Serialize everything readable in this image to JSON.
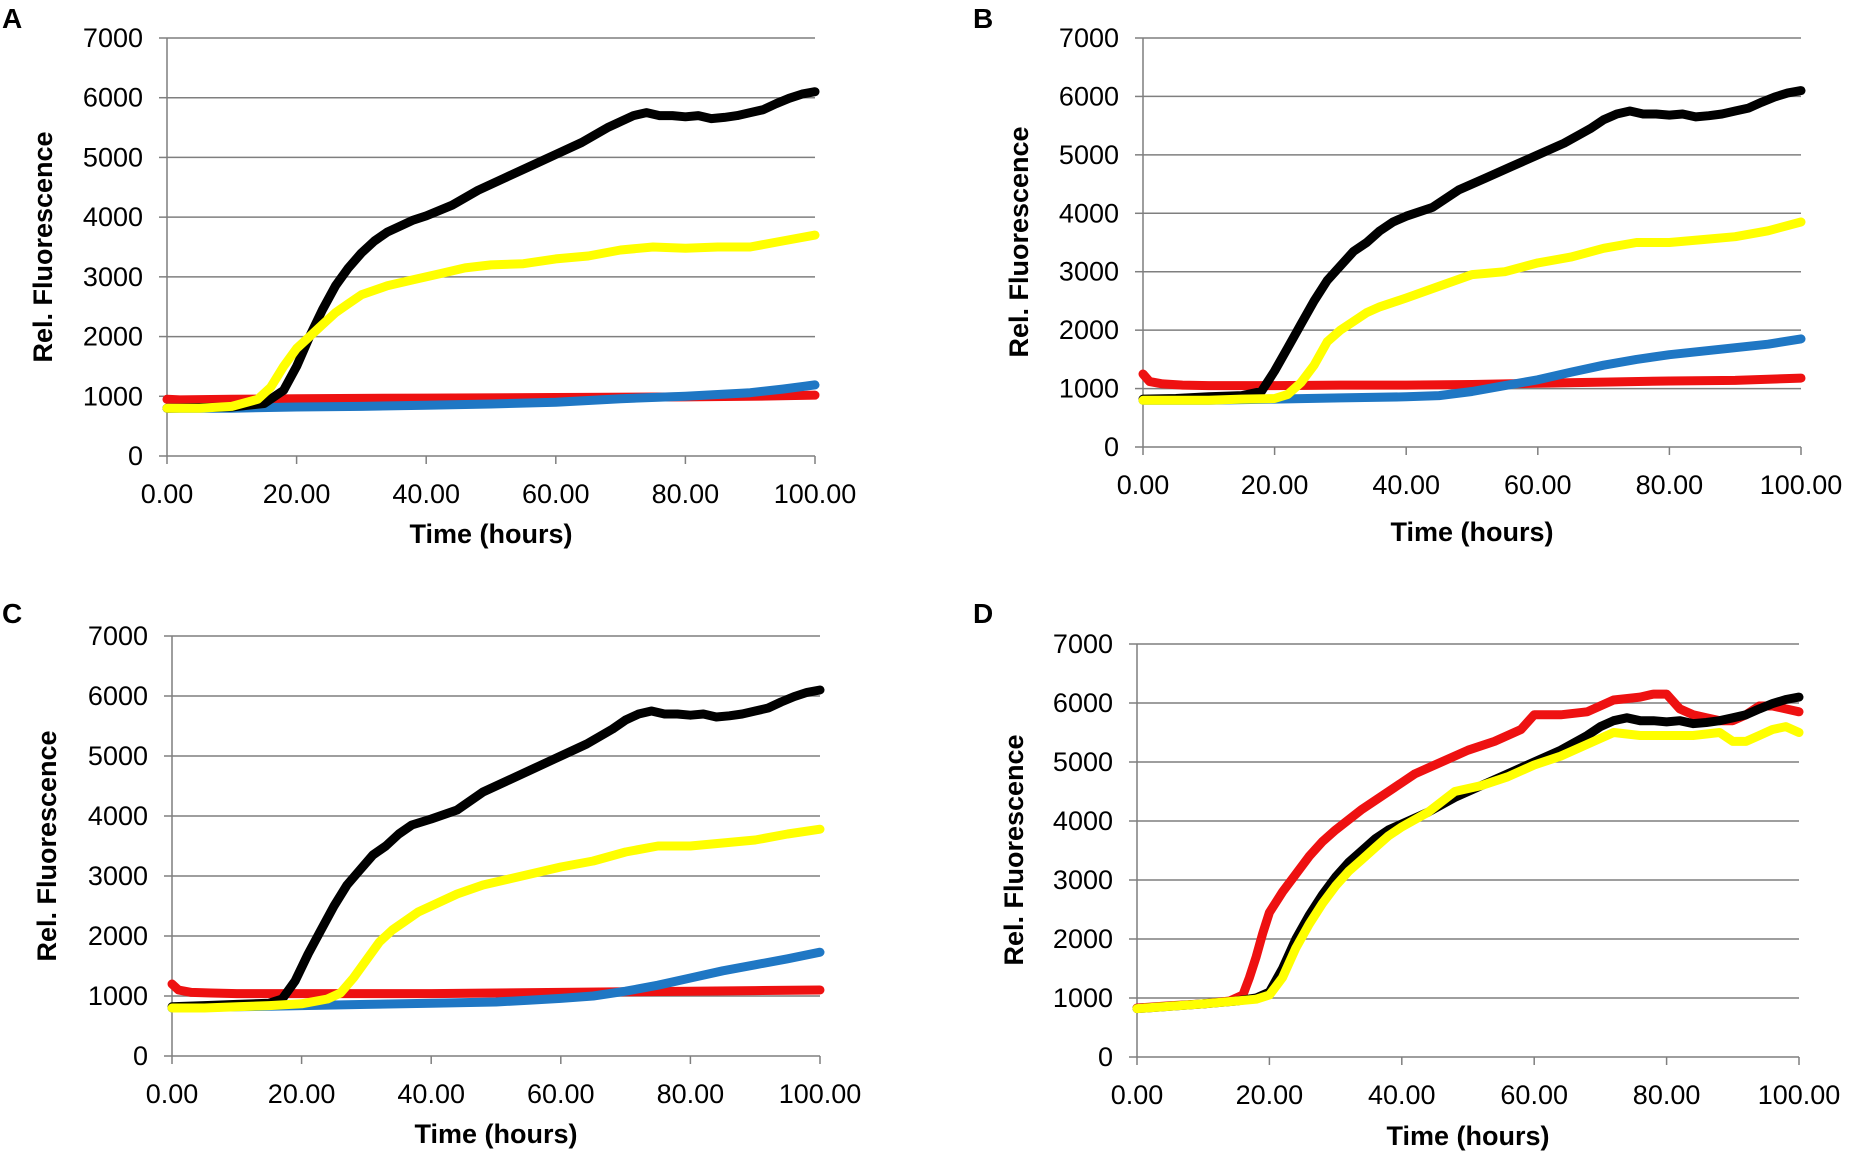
{
  "colors": {
    "black": "#000000",
    "yellow": "#ffff00",
    "blue": "#1f77c4",
    "red": "#ee1111",
    "grid": "#7f7f7f"
  },
  "chart_data": [
    {
      "panel": "A",
      "type": "line",
      "title": "",
      "xlabel": "Time (hours)",
      "ylabel": "Rel. Fluorescence",
      "xlim": [
        0,
        100
      ],
      "ylim": [
        0,
        7000
      ],
      "grid": true,
      "x_ticks": [
        "0.00",
        "20.00",
        "40.00",
        "60.00",
        "80.00",
        "100.00"
      ],
      "y_ticks": [
        "0",
        "1000",
        "2000",
        "3000",
        "4000",
        "5000",
        "6000",
        "7000"
      ],
      "series": [
        {
          "name": "red",
          "color": "red",
          "x": [
            0,
            2,
            10,
            20,
            40,
            60,
            80,
            90,
            100
          ],
          "y": [
            950,
            940,
            950,
            960,
            970,
            980,
            990,
            1000,
            1020
          ]
        },
        {
          "name": "blue",
          "color": "blue",
          "x": [
            0,
            10,
            20,
            30,
            40,
            50,
            60,
            70,
            80,
            90,
            95,
            100
          ],
          "y": [
            800,
            800,
            820,
            830,
            850,
            870,
            900,
            960,
            1000,
            1060,
            1120,
            1190
          ]
        },
        {
          "name": "black",
          "color": "black",
          "x": [
            0,
            5,
            10,
            15,
            18,
            20,
            22,
            24,
            26,
            28,
            30,
            32,
            34,
            36,
            38,
            40,
            44,
            48,
            52,
            56,
            60,
            64,
            68,
            70,
            72,
            74,
            76,
            78,
            80,
            82,
            84,
            86,
            88,
            90,
            92,
            94,
            96,
            98,
            100
          ],
          "y": [
            800,
            810,
            820,
            880,
            1100,
            1500,
            2000,
            2450,
            2850,
            3150,
            3400,
            3600,
            3750,
            3850,
            3950,
            4020,
            4200,
            4450,
            4650,
            4850,
            5050,
            5250,
            5500,
            5600,
            5700,
            5750,
            5700,
            5700,
            5680,
            5700,
            5650,
            5670,
            5700,
            5750,
            5800,
            5900,
            5990,
            6060,
            6100
          ]
        },
        {
          "name": "yellow",
          "color": "yellow",
          "x": [
            0,
            5,
            10,
            14,
            16,
            18,
            20,
            22,
            24,
            26,
            28,
            30,
            34,
            38,
            42,
            46,
            50,
            55,
            60,
            65,
            70,
            75,
            80,
            85,
            90,
            95,
            100
          ],
          "y": [
            800,
            800,
            830,
            950,
            1150,
            1500,
            1800,
            2000,
            2200,
            2400,
            2550,
            2700,
            2850,
            2950,
            3050,
            3150,
            3200,
            3220,
            3300,
            3350,
            3450,
            3500,
            3480,
            3500,
            3500,
            3600,
            3700
          ]
        }
      ]
    },
    {
      "panel": "B",
      "type": "line",
      "title": "",
      "xlabel": "Time (hours)",
      "ylabel": "Rel. Fluorescence",
      "xlim": [
        0,
        100
      ],
      "ylim": [
        0,
        7000
      ],
      "grid": true,
      "x_ticks": [
        "0.00",
        "20.00",
        "40.00",
        "60.00",
        "80.00",
        "100.00"
      ],
      "y_ticks": [
        "0",
        "1000",
        "2000",
        "3000",
        "4000",
        "5000",
        "6000",
        "7000"
      ],
      "series": [
        {
          "name": "red",
          "color": "red",
          "x": [
            0,
            1,
            3,
            6,
            10,
            20,
            30,
            40,
            50,
            60,
            70,
            80,
            90,
            100
          ],
          "y": [
            1250,
            1120,
            1080,
            1060,
            1050,
            1050,
            1060,
            1060,
            1070,
            1090,
            1110,
            1130,
            1140,
            1180
          ]
        },
        {
          "name": "blue",
          "color": "blue",
          "x": [
            0,
            10,
            20,
            30,
            40,
            45,
            50,
            55,
            60,
            65,
            70,
            75,
            80,
            85,
            90,
            95,
            100
          ],
          "y": [
            800,
            800,
            820,
            840,
            860,
            880,
            950,
            1050,
            1150,
            1280,
            1400,
            1500,
            1580,
            1640,
            1700,
            1760,
            1850
          ]
        },
        {
          "name": "black",
          "color": "black",
          "x": [
            0,
            5,
            10,
            15,
            18,
            20,
            22,
            24,
            26,
            28,
            30,
            32,
            34,
            36,
            38,
            40,
            44,
            48,
            52,
            56,
            60,
            64,
            68,
            70,
            72,
            74,
            76,
            78,
            80,
            82,
            84,
            86,
            88,
            90,
            92,
            94,
            96,
            98,
            100
          ],
          "y": [
            820,
            830,
            860,
            880,
            950,
            1300,
            1700,
            2100,
            2500,
            2850,
            3100,
            3350,
            3500,
            3700,
            3850,
            3950,
            4100,
            4400,
            4600,
            4800,
            5000,
            5200,
            5450,
            5600,
            5700,
            5750,
            5700,
            5700,
            5680,
            5700,
            5650,
            5670,
            5700,
            5750,
            5800,
            5900,
            5990,
            6060,
            6100
          ]
        },
        {
          "name": "yellow",
          "color": "yellow",
          "x": [
            0,
            5,
            10,
            15,
            20,
            22,
            24,
            26,
            28,
            30,
            32,
            34,
            36,
            40,
            45,
            50,
            55,
            60,
            65,
            70,
            75,
            80,
            85,
            90,
            95,
            100
          ],
          "y": [
            800,
            800,
            800,
            820,
            830,
            900,
            1100,
            1400,
            1800,
            2000,
            2150,
            2300,
            2400,
            2550,
            2750,
            2950,
            3000,
            3150,
            3250,
            3400,
            3500,
            3500,
            3550,
            3600,
            3700,
            3850
          ]
        }
      ]
    },
    {
      "panel": "C",
      "type": "line",
      "title": "",
      "xlabel": "Time (hours)",
      "ylabel": "Rel. Fluorescence",
      "xlim": [
        0,
        100
      ],
      "ylim": [
        0,
        7000
      ],
      "grid": true,
      "x_ticks": [
        "0.00",
        "20.00",
        "40.00",
        "60.00",
        "80.00",
        "100.00"
      ],
      "y_ticks": [
        "0",
        "1000",
        "2000",
        "3000",
        "4000",
        "5000",
        "6000",
        "7000"
      ],
      "series": [
        {
          "name": "red",
          "color": "red",
          "x": [
            0,
            1,
            3,
            6,
            10,
            20,
            30,
            40,
            50,
            60,
            70,
            80,
            90,
            100
          ],
          "y": [
            1200,
            1100,
            1060,
            1050,
            1040,
            1040,
            1040,
            1040,
            1050,
            1060,
            1070,
            1080,
            1090,
            1100
          ]
        },
        {
          "name": "blue",
          "color": "blue",
          "x": [
            0,
            10,
            20,
            30,
            40,
            50,
            55,
            60,
            65,
            70,
            75,
            80,
            85,
            90,
            95,
            100
          ],
          "y": [
            800,
            820,
            840,
            860,
            880,
            900,
            930,
            960,
            1000,
            1080,
            1180,
            1300,
            1420,
            1520,
            1620,
            1730
          ]
        },
        {
          "name": "black",
          "color": "black",
          "x": [
            0,
            5,
            10,
            15,
            17,
            19,
            21,
            23,
            25,
            27,
            29,
            31,
            33,
            35,
            37,
            40,
            44,
            48,
            52,
            56,
            60,
            64,
            68,
            70,
            72,
            74,
            76,
            78,
            80,
            82,
            84,
            86,
            88,
            90,
            92,
            94,
            96,
            98,
            100
          ],
          "y": [
            820,
            840,
            860,
            880,
            950,
            1250,
            1700,
            2100,
            2500,
            2850,
            3100,
            3350,
            3500,
            3700,
            3850,
            3950,
            4100,
            4400,
            4600,
            4800,
            5000,
            5200,
            5450,
            5600,
            5700,
            5750,
            5700,
            5700,
            5680,
            5700,
            5650,
            5670,
            5700,
            5750,
            5800,
            5900,
            5990,
            6060,
            6100
          ]
        },
        {
          "name": "yellow",
          "color": "yellow",
          "x": [
            0,
            5,
            10,
            15,
            20,
            24,
            26,
            28,
            30,
            32,
            34,
            36,
            38,
            40,
            44,
            48,
            52,
            56,
            60,
            65,
            70,
            75,
            80,
            85,
            90,
            95,
            100
          ],
          "y": [
            800,
            800,
            820,
            840,
            870,
            950,
            1050,
            1300,
            1600,
            1900,
            2100,
            2250,
            2400,
            2500,
            2700,
            2850,
            2950,
            3050,
            3150,
            3250,
            3400,
            3500,
            3500,
            3550,
            3600,
            3700,
            3780
          ]
        }
      ]
    },
    {
      "panel": "D",
      "type": "line",
      "title": "",
      "xlabel": "Time (hours)",
      "ylabel": "Rel. Fluorescence",
      "xlim": [
        0,
        100
      ],
      "ylim": [
        0,
        7000
      ],
      "grid": true,
      "x_ticks": [
        "0.00",
        "20.00",
        "40.00",
        "60.00",
        "80.00",
        "100.00"
      ],
      "y_ticks": [
        "0",
        "1000",
        "2000",
        "3000",
        "4000",
        "5000",
        "6000",
        "7000"
      ],
      "series": [
        {
          "name": "red",
          "color": "red",
          "x": [
            0,
            5,
            10,
            14,
            16,
            17,
            18,
            19,
            20,
            22,
            24,
            26,
            28,
            30,
            34,
            38,
            42,
            46,
            50,
            54,
            58,
            60,
            64,
            68,
            72,
            76,
            78,
            80,
            82,
            84,
            86,
            88,
            90,
            92,
            94,
            96,
            98,
            100
          ],
          "y": [
            830,
            870,
            900,
            950,
            1050,
            1350,
            1700,
            2100,
            2450,
            2800,
            3100,
            3400,
            3650,
            3850,
            4200,
            4500,
            4800,
            5000,
            5200,
            5350,
            5550,
            5800,
            5800,
            5850,
            6050,
            6100,
            6150,
            6150,
            5900,
            5800,
            5750,
            5700,
            5700,
            5800,
            5950,
            5950,
            5900,
            5850
          ]
        },
        {
          "name": "black",
          "color": "black",
          "x": [
            0,
            5,
            10,
            15,
            18,
            20,
            22,
            24,
            26,
            28,
            30,
            32,
            34,
            36,
            38,
            40,
            44,
            48,
            52,
            56,
            60,
            64,
            68,
            70,
            72,
            74,
            76,
            78,
            80,
            82,
            84,
            86,
            88,
            90,
            92,
            94,
            96,
            98,
            100
          ],
          "y": [
            820,
            860,
            900,
            950,
            1000,
            1100,
            1500,
            2000,
            2400,
            2750,
            3050,
            3300,
            3500,
            3700,
            3850,
            3950,
            4150,
            4400,
            4600,
            4800,
            5000,
            5200,
            5450,
            5600,
            5700,
            5750,
            5700,
            5700,
            5680,
            5700,
            5650,
            5670,
            5700,
            5750,
            5800,
            5900,
            5990,
            6060,
            6100
          ]
        },
        {
          "name": "yellow",
          "color": "yellow",
          "x": [
            0,
            5,
            10,
            15,
            18,
            20,
            22,
            24,
            26,
            28,
            30,
            32,
            34,
            36,
            38,
            40,
            44,
            48,
            52,
            56,
            60,
            64,
            68,
            72,
            76,
            80,
            84,
            88,
            90,
            92,
            94,
            96,
            98,
            100
          ],
          "y": [
            820,
            860,
            900,
            950,
            980,
            1050,
            1350,
            1850,
            2250,
            2600,
            2900,
            3150,
            3350,
            3550,
            3750,
            3900,
            4150,
            4500,
            4600,
            4750,
            4950,
            5100,
            5300,
            5500,
            5450,
            5450,
            5450,
            5500,
            5350,
            5350,
            5450,
            5550,
            5600,
            5500
          ]
        }
      ]
    }
  ]
}
